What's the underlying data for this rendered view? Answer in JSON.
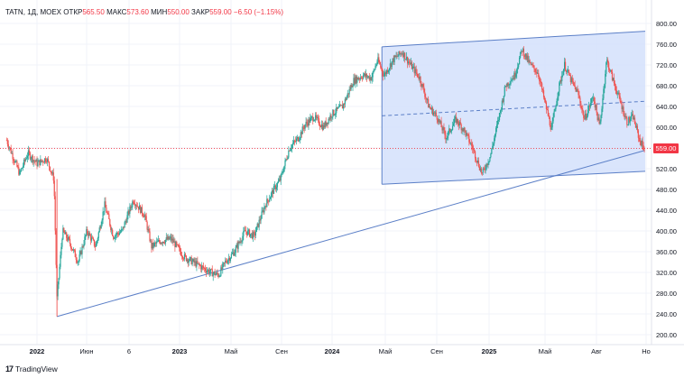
{
  "header": {
    "symbol": "TATN, 1Д, MOEX",
    "open_label": "ОТКР",
    "open_value": "565.50",
    "high_label": "МАКС",
    "high_value": "573.60",
    "low_label": "МИН",
    "low_value": "550.00",
    "close_label": "ЗАКР",
    "close_value": "559.00",
    "change": "−6.50 (−1.15%)"
  },
  "last_price_label": "559.00",
  "footer": {
    "brand": "TradingView"
  },
  "colors": {
    "up": "#26a69a",
    "down": "#ef5350",
    "trendline": "#5b7fc7",
    "channel_fill": "#d4e0fb",
    "price_line": "#f23645"
  },
  "chart_data": {
    "type": "candlestick",
    "title": "",
    "xlabel": "",
    "ylabel": "",
    "ylim": [
      180,
      820
    ],
    "y_ticks": [
      "800.00",
      "760.00",
      "720.00",
      "680.00",
      "640.00",
      "600.00",
      "560.00",
      "520.00",
      "480.00",
      "440.00",
      "400.00",
      "360.00",
      "320.00",
      "280.00",
      "240.00",
      "200.00"
    ],
    "x_ticks": [
      "2022",
      "Июн",
      "6",
      "2023",
      "Май",
      "Сен",
      "2024",
      "Май",
      "Сен",
      "2025",
      "Май",
      "Авг",
      "Но"
    ],
    "last_price": 559.0,
    "path_points": [
      {
        "d": "2021-11-01",
        "v": 575
      },
      {
        "d": "2021-11-15",
        "v": 545
      },
      {
        "d": "2021-12-01",
        "v": 510
      },
      {
        "d": "2021-12-20",
        "v": 550
      },
      {
        "d": "2022-01-10",
        "v": 530
      },
      {
        "d": "2022-02-01",
        "v": 540
      },
      {
        "d": "2022-02-18",
        "v": 500
      },
      {
        "d": "2022-02-25",
        "v": 270
      },
      {
        "d": "2022-03-10",
        "v": 400
      },
      {
        "d": "2022-03-25",
        "v": 380
      },
      {
        "d": "2022-04-15",
        "v": 340
      },
      {
        "d": "2022-05-05",
        "v": 400
      },
      {
        "d": "2022-05-25",
        "v": 370
      },
      {
        "d": "2022-06-15",
        "v": 450
      },
      {
        "d": "2022-07-05",
        "v": 390
      },
      {
        "d": "2022-07-25",
        "v": 400
      },
      {
        "d": "2022-08-20",
        "v": 460
      },
      {
        "d": "2022-09-15",
        "v": 430
      },
      {
        "d": "2022-10-01",
        "v": 370
      },
      {
        "d": "2022-10-20",
        "v": 380
      },
      {
        "d": "2022-11-15",
        "v": 385
      },
      {
        "d": "2022-12-15",
        "v": 350
      },
      {
        "d": "2023-01-15",
        "v": 335
      },
      {
        "d": "2023-02-15",
        "v": 320
      },
      {
        "d": "2023-03-05",
        "v": 315
      },
      {
        "d": "2023-03-20",
        "v": 340
      },
      {
        "d": "2023-04-10",
        "v": 360
      },
      {
        "d": "2023-05-05",
        "v": 400
      },
      {
        "d": "2023-05-25",
        "v": 390
      },
      {
        "d": "2023-06-20",
        "v": 450
      },
      {
        "d": "2023-07-10",
        "v": 480
      },
      {
        "d": "2023-07-25",
        "v": 500
      },
      {
        "d": "2023-08-15",
        "v": 560
      },
      {
        "d": "2023-09-05",
        "v": 580
      },
      {
        "d": "2023-09-20",
        "v": 605
      },
      {
        "d": "2023-10-10",
        "v": 620
      },
      {
        "d": "2023-11-01",
        "v": 600
      },
      {
        "d": "2023-11-20",
        "v": 625
      },
      {
        "d": "2023-12-15",
        "v": 640
      },
      {
        "d": "2024-01-10",
        "v": 690
      },
      {
        "d": "2024-02-01",
        "v": 700
      },
      {
        "d": "2024-02-20",
        "v": 695
      },
      {
        "d": "2024-03-05",
        "v": 730
      },
      {
        "d": "2024-03-20",
        "v": 700
      },
      {
        "d": "2024-04-10",
        "v": 730
      },
      {
        "d": "2024-05-01",
        "v": 745
      },
      {
        "d": "2024-05-20",
        "v": 720
      },
      {
        "d": "2024-06-10",
        "v": 695
      },
      {
        "d": "2024-07-01",
        "v": 640
      },
      {
        "d": "2024-07-20",
        "v": 620
      },
      {
        "d": "2024-08-10",
        "v": 580
      },
      {
        "d": "2024-09-01",
        "v": 615
      },
      {
        "d": "2024-09-20",
        "v": 595
      },
      {
        "d": "2024-10-10",
        "v": 560
      },
      {
        "d": "2024-11-01",
        "v": 510
      },
      {
        "d": "2024-11-20",
        "v": 545
      },
      {
        "d": "2024-12-10",
        "v": 620
      },
      {
        "d": "2024-12-25",
        "v": 680
      },
      {
        "d": "2025-01-15",
        "v": 700
      },
      {
        "d": "2025-02-01",
        "v": 750
      },
      {
        "d": "2025-02-20",
        "v": 720
      },
      {
        "d": "2025-03-10",
        "v": 705
      },
      {
        "d": "2025-03-25",
        "v": 650
      },
      {
        "d": "2025-04-10",
        "v": 595
      },
      {
        "d": "2025-04-25",
        "v": 670
      },
      {
        "d": "2025-05-10",
        "v": 720
      },
      {
        "d": "2025-05-25",
        "v": 690
      },
      {
        "d": "2025-06-10",
        "v": 665
      },
      {
        "d": "2025-06-25",
        "v": 615
      },
      {
        "d": "2025-07-15",
        "v": 660
      },
      {
        "d": "2025-07-30",
        "v": 600
      },
      {
        "d": "2025-08-15",
        "v": 730
      },
      {
        "d": "2025-08-30",
        "v": 690
      },
      {
        "d": "2025-09-15",
        "v": 650
      },
      {
        "d": "2025-10-01",
        "v": 610
      },
      {
        "d": "2025-10-15",
        "v": 620
      },
      {
        "d": "2025-10-30",
        "v": 575
      },
      {
        "d": "2025-11-10",
        "v": 559
      }
    ],
    "drawings": {
      "trendline": {
        "from": {
          "d": "2022-02-25",
          "v": 235
        },
        "to": {
          "d": "2025-11-10",
          "v": 555
        }
      },
      "channel": {
        "upper": {
          "from": {
            "d": "2024-03-15",
            "v": 755
          },
          "to": {
            "d": "2025-11-12",
            "v": 785
          }
        },
        "lower": {
          "from": {
            "d": "2024-03-15",
            "v": 490
          },
          "to": {
            "d": "2025-11-12",
            "v": 515
          }
        },
        "mid": {
          "from": {
            "d": "2024-03-15",
            "v": 622
          },
          "to": {
            "d": "2025-11-12",
            "v": 650
          }
        }
      }
    }
  }
}
